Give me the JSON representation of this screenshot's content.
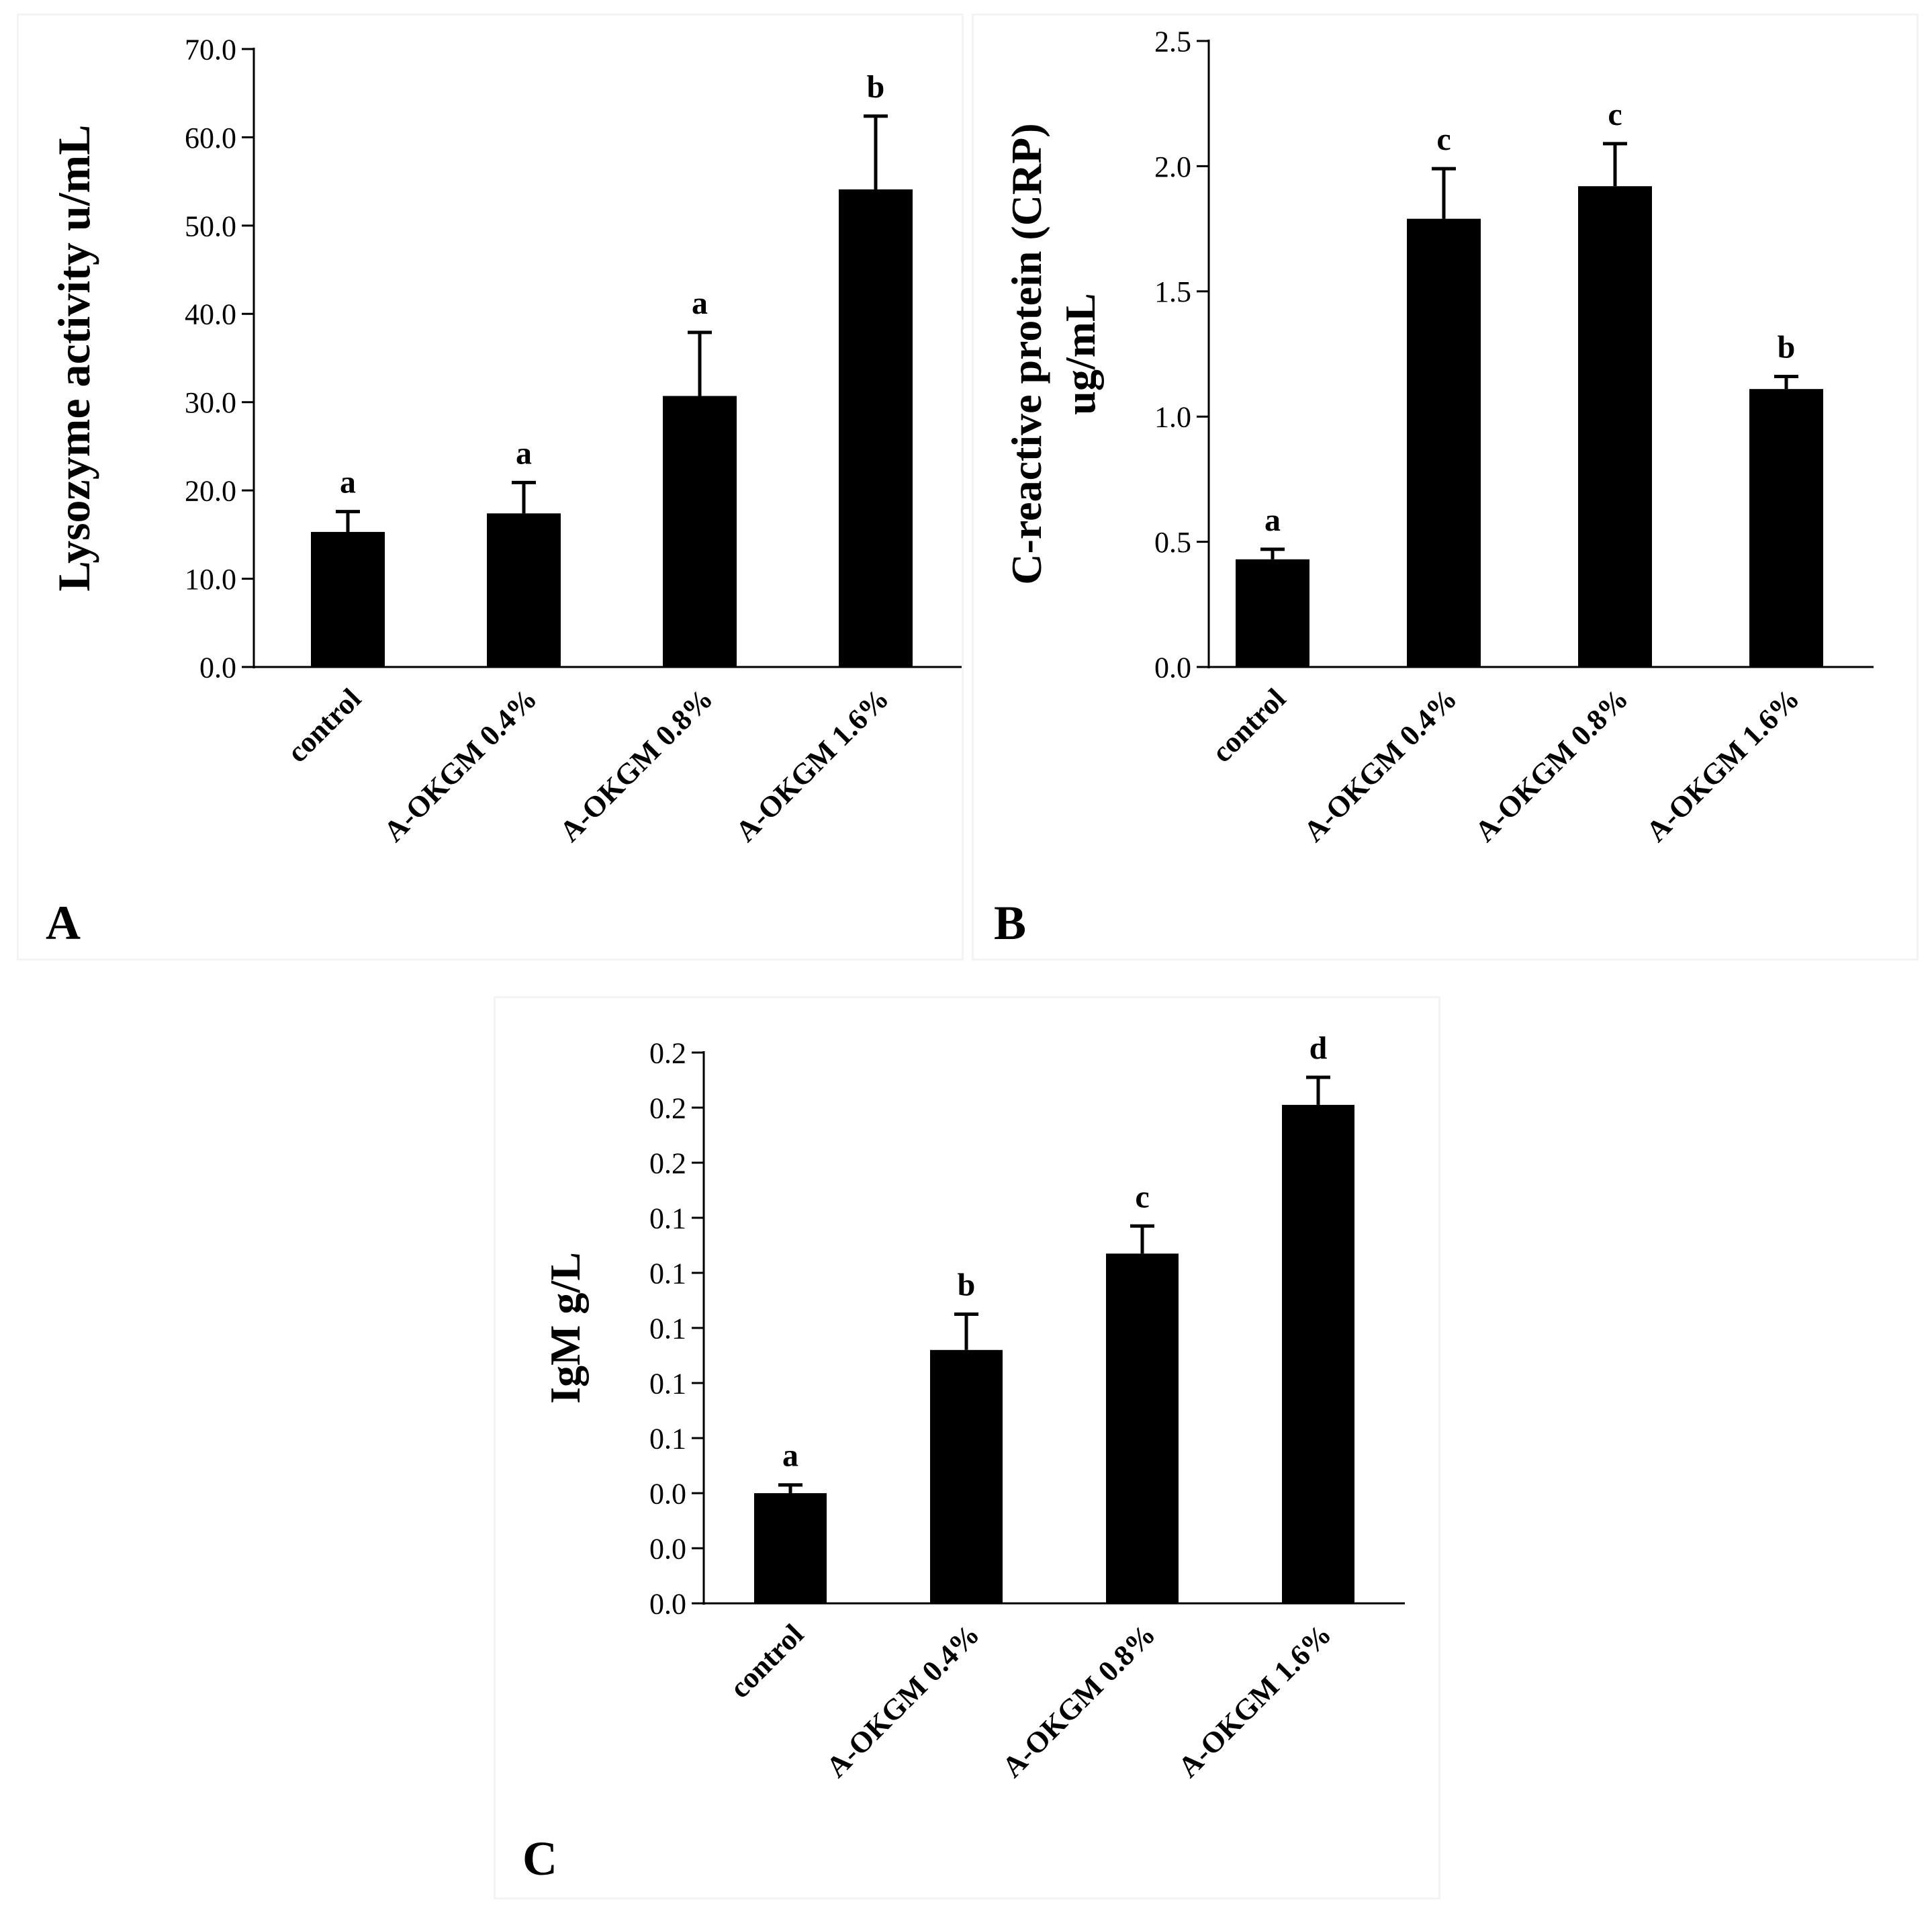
{
  "chart_data": [
    {
      "panel_label": "A",
      "type": "bar",
      "ylabel": "Lysozyme activity  u/mL",
      "categories": [
        "control",
        "A-OKGM 0.4%",
        "A-OKGM 0.8%",
        "A-OKGM 1.6%"
      ],
      "values": [
        15.3,
        17.4,
        30.7,
        54.1
      ],
      "errors": [
        2.3,
        3.5,
        7.2,
        8.3
      ],
      "letters": [
        "a",
        "a",
        "a",
        "b"
      ],
      "ylim": [
        0,
        70
      ],
      "ticks": [
        0,
        10,
        20,
        30,
        40,
        50,
        60,
        70
      ],
      "tick_labels": [
        "0.0",
        "10.0",
        "20.0",
        "30.0",
        "40.0",
        "50.0",
        "60.0",
        "70.0"
      ],
      "bar_color": "#000000"
    },
    {
      "panel_label": "B",
      "type": "bar",
      "ylabel_lines": [
        "C-reactive protein (CRP)",
        "ug/mL"
      ],
      "categories": [
        "control",
        "A-OKGM 0.4%",
        "A-OKGM 0.8%",
        "A-OKGM 1.6%"
      ],
      "values": [
        0.43,
        1.79,
        1.92,
        1.11
      ],
      "errors": [
        0.04,
        0.2,
        0.17,
        0.05
      ],
      "letters": [
        "a",
        "c",
        "c",
        "b"
      ],
      "ylim": [
        0,
        2.5
      ],
      "ticks": [
        0,
        0.5,
        1.0,
        1.5,
        2.0,
        2.5
      ],
      "tick_labels": [
        "0.0",
        "0.5",
        "1.0",
        "1.5",
        "2.0",
        "2.5"
      ],
      "bar_color": "#000000"
    },
    {
      "panel_label": "C",
      "type": "bar",
      "ylabel": "IgM g/L",
      "categories": [
        "control",
        "A-OKGM 0.4%",
        "A-OKGM 0.8%",
        "A-OKGM 1.6%"
      ],
      "values": [
        0.04,
        0.092,
        0.127,
        0.181
      ],
      "errors": [
        0.003,
        0.013,
        0.01,
        0.01
      ],
      "letters": [
        "a",
        "b",
        "c",
        "d"
      ],
      "ylim": [
        0,
        0.2
      ],
      "ticks": [
        0,
        0.02,
        0.04,
        0.06,
        0.08,
        0.1,
        0.12,
        0.14,
        0.16,
        0.18,
        0.2
      ],
      "tick_labels": [
        "0.0",
        "0.0",
        "0.0",
        "0.1",
        "0.1",
        "0.1",
        "0.1",
        "0.1",
        "0.2",
        "0.2",
        "0.2"
      ],
      "bar_color": "#000000"
    }
  ]
}
